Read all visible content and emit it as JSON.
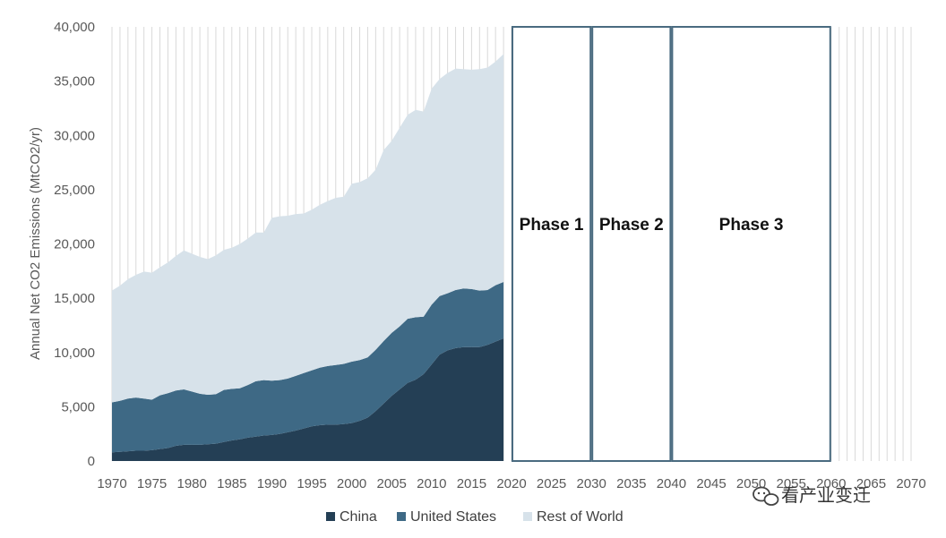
{
  "chart_data": {
    "type": "area",
    "stacked": true,
    "title": "",
    "xlabel": "",
    "ylabel": "Annual Net CO2 Emissions (MtCO2/yr)",
    "xlim": [
      1970,
      2070
    ],
    "ylim": [
      0,
      40000
    ],
    "x_ticks": [
      "1970",
      "1975",
      "1980",
      "1985",
      "1990",
      "1995",
      "2000",
      "2005",
      "2010",
      "2015",
      "2020",
      "2025",
      "2030",
      "2035",
      "2040",
      "2045",
      "2050",
      "2055",
      "2060",
      "2065",
      "2070"
    ],
    "y_ticks": [
      "0",
      "5,000",
      "10,000",
      "15,000",
      "20,000",
      "25,000",
      "30,000",
      "35,000",
      "40,000"
    ],
    "grid": "vertical",
    "legend_position": "bottom",
    "x": [
      1970,
      1971,
      1972,
      1973,
      1974,
      1975,
      1976,
      1977,
      1978,
      1979,
      1980,
      1981,
      1982,
      1983,
      1984,
      1985,
      1986,
      1987,
      1988,
      1989,
      1990,
      1991,
      1992,
      1993,
      1994,
      1995,
      1996,
      1997,
      1998,
      1999,
      2000,
      2001,
      2002,
      2003,
      2004,
      2005,
      2006,
      2007,
      2008,
      2009,
      2010,
      2011,
      2012,
      2013,
      2014,
      2015,
      2016,
      2017,
      2018,
      2019
    ],
    "series": [
      {
        "name": "China",
        "color": "#243f55",
        "values": [
          800,
          850,
          900,
          950,
          950,
          1000,
          1100,
          1200,
          1400,
          1500,
          1500,
          1500,
          1550,
          1600,
          1750,
          1900,
          2000,
          2150,
          2250,
          2350,
          2400,
          2500,
          2650,
          2800,
          3000,
          3200,
          3300,
          3350,
          3350,
          3400,
          3500,
          3700,
          4000,
          4600,
          5300,
          6000,
          6600,
          7200,
          7500,
          8000,
          8900,
          9800,
          10200,
          10400,
          10500,
          10500,
          10500,
          10700,
          11000,
          11300
        ]
      },
      {
        "name": "United States",
        "color": "#3e6985",
        "values": [
          4600,
          4700,
          4850,
          4900,
          4800,
          4650,
          4950,
          5050,
          5100,
          5100,
          4900,
          4700,
          4550,
          4550,
          4800,
          4750,
          4700,
          4850,
          5100,
          5100,
          5000,
          4950,
          4950,
          5050,
          5100,
          5150,
          5300,
          5400,
          5500,
          5550,
          5650,
          5600,
          5550,
          5650,
          5750,
          5800,
          5800,
          5900,
          5750,
          5300,
          5500,
          5400,
          5250,
          5350,
          5400,
          5350,
          5200,
          5050,
          5200,
          5200
        ]
      },
      {
        "name": "Rest of World",
        "color": "#d7e2ea",
        "values": [
          10300,
          10600,
          11000,
          11300,
          11700,
          11700,
          11800,
          12050,
          12400,
          12800,
          12700,
          12600,
          12500,
          12800,
          12900,
          13000,
          13300,
          13500,
          13700,
          13600,
          15000,
          15100,
          15000,
          14900,
          14700,
          14800,
          15000,
          15200,
          15400,
          15400,
          16400,
          16400,
          16500,
          16600,
          17600,
          17700,
          18300,
          18800,
          19100,
          18900,
          19900,
          20000,
          20300,
          20400,
          20200,
          20200,
          20400,
          20500,
          20600,
          21000
        ]
      }
    ],
    "annotations": [
      {
        "label": "Phase 1",
        "x_start": 2020,
        "x_end": 2030
      },
      {
        "label": "Phase 2",
        "x_start": 2030,
        "x_end": 2040
      },
      {
        "label": "Phase 3",
        "x_start": 2040,
        "x_end": 2060
      }
    ]
  },
  "watermark": {
    "text": "看产业变迁",
    "icon": "wechat-icon"
  }
}
